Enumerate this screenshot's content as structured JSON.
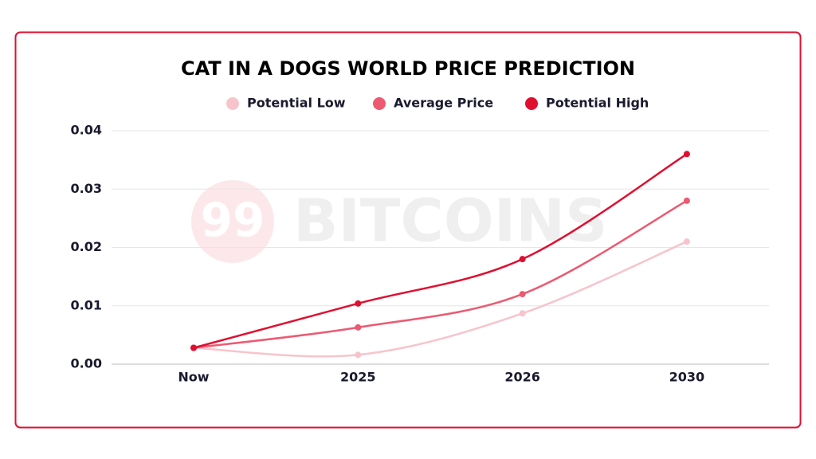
{
  "chart_data": {
    "type": "line",
    "title": "CAT IN A DOGS WORLD PRICE PREDICTION",
    "watermark_logo": "99",
    "watermark": "BITCOINS",
    "categories": [
      "Now",
      "2025",
      "2026",
      "2030"
    ],
    "series": [
      {
        "name": "Potential Low",
        "color": "#f7c4cc",
        "values": [
          0.0028,
          0.0016,
          0.0087,
          0.021
        ]
      },
      {
        "name": "Average Price",
        "color": "#ec5a72",
        "values": [
          0.0028,
          0.0063,
          0.012,
          0.028
        ]
      },
      {
        "name": "Potential High",
        "color": "#df0f30",
        "values": [
          0.0028,
          0.0104,
          0.018,
          0.036
        ]
      }
    ],
    "ylim": [
      0,
      0.04
    ],
    "yticks": [
      {
        "value": 0,
        "label": "0.00"
      },
      0.01,
      0.02,
      0.03,
      0.04
    ],
    "grid": true
  }
}
